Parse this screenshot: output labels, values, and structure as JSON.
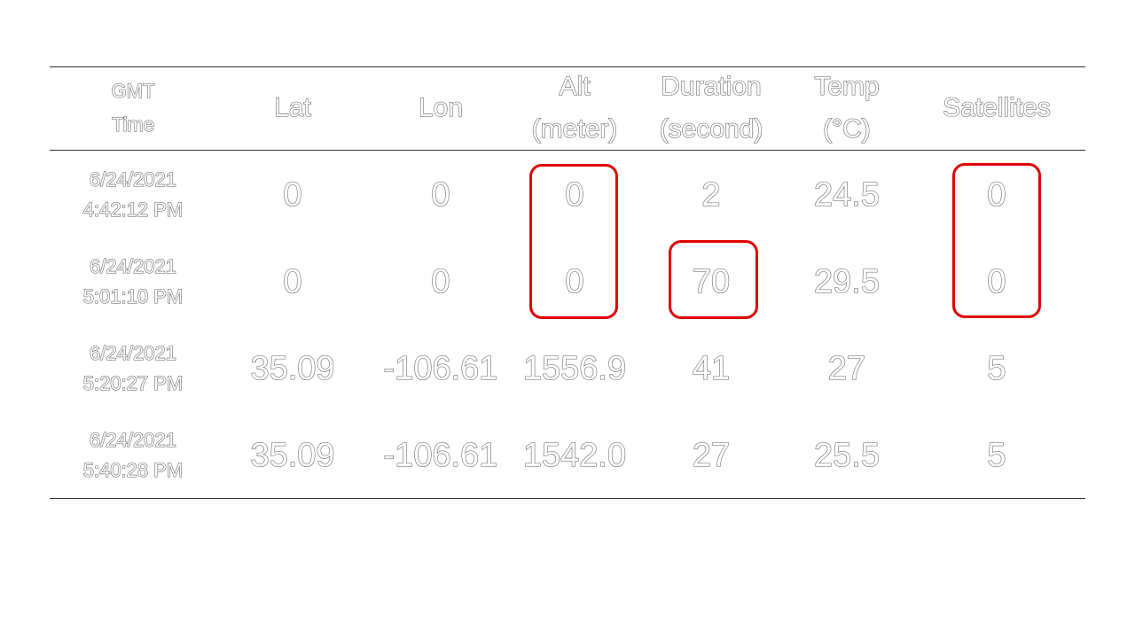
{
  "table": {
    "headers": [
      "GMT\nTime",
      "Lat",
      "Lon",
      "Alt\n(meter)",
      "Duration\n(second)",
      "Temp\n(°C)",
      "Satellites"
    ],
    "rows": [
      {
        "time": "6/24/2021\n4:42:12 PM",
        "lat": "0",
        "lon": "0",
        "alt": "0",
        "duration": "2",
        "temp": "24.5",
        "satellites": "0"
      },
      {
        "time": "6/24/2021\n5:01:10 PM",
        "lat": "0",
        "lon": "0",
        "alt": "0",
        "duration": "70",
        "temp": "29.5",
        "satellites": "0"
      },
      {
        "time": "6/24/2021\n5:20:27 PM",
        "lat": "35.09",
        "lon": "-106.61",
        "alt": "1556.9",
        "duration": "41",
        "temp": "27",
        "satellites": "5"
      },
      {
        "time": "6/24/2021\n5:40:28 PM",
        "lat": "35.09",
        "lon": "-106.61",
        "alt": "1542.0",
        "duration": "27",
        "temp": "25.5",
        "satellites": "5"
      }
    ]
  },
  "colors": {
    "highlight": "#e00000",
    "rule": "#333333",
    "text_outline": "#5a5a5a"
  }
}
